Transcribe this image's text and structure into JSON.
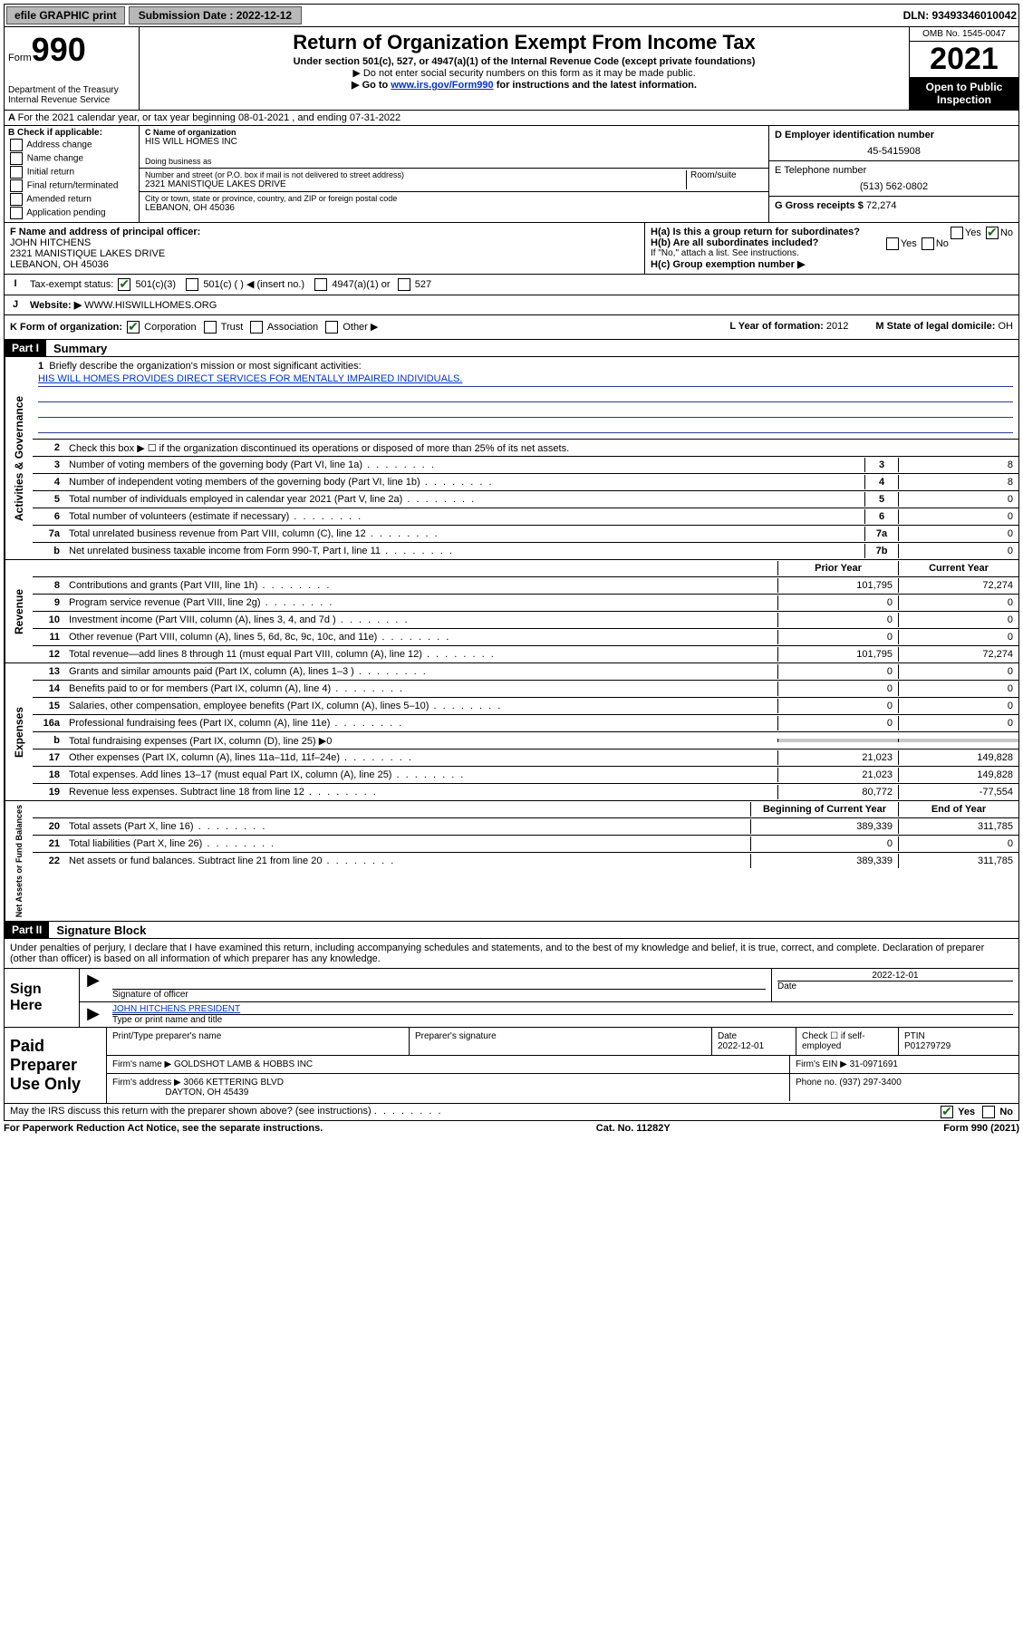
{
  "meta": {
    "efile_label": "efile GRAPHIC print",
    "submission_label": "Submission Date : 2022-12-12",
    "dln": "DLN: 93493346010042"
  },
  "header": {
    "form_label": "Form",
    "form_number": "990",
    "title": "Return of Organization Exempt From Income Tax",
    "subtitle": "Under section 501(c), 527, or 4947(a)(1) of the Internal Revenue Code (except private foundations)",
    "note1": "▶ Do not enter social security numbers on this form as it may be made public.",
    "note2_prefix": "▶ Go to ",
    "note2_link": "www.irs.gov/Form990",
    "note2_suffix": " for instructions and the latest information.",
    "dept": "Department of the Treasury",
    "irs": "Internal Revenue Service",
    "omb": "OMB No. 1545-0047",
    "year": "2021",
    "inspection": "Open to Public Inspection"
  },
  "line_a": "For the 2021 calendar year, or tax year beginning 08-01-2021   , and ending 07-31-2022",
  "section_b": {
    "label": "B Check if applicable:",
    "opts": [
      "Address change",
      "Name change",
      "Initial return",
      "Final return/terminated",
      "Amended return",
      "Application pending"
    ],
    "name_label": "C Name of organization",
    "name": "HIS WILL HOMES INC",
    "dba_label": "Doing business as",
    "dba": "",
    "addr_label": "Number and street (or P.O. box if mail is not delivered to street address)",
    "addr": "2321 MANISTIQUE LAKES DRIVE",
    "suite_label": "Room/suite",
    "city_label": "City or town, state or province, country, and ZIP or foreign postal code",
    "city": "LEBANON, OH  45036",
    "ein_label": "D Employer identification number",
    "ein": "45-5415908",
    "phone_label": "E Telephone number",
    "phone": "(513) 562-0802",
    "gross_label": "G Gross receipts $",
    "gross": "72,274"
  },
  "section_fh": {
    "f_label": "F  Name and address of principal officer:",
    "f_name": "JOHN HITCHENS",
    "f_addr": "2321 MANISTIQUE LAKES DRIVE",
    "f_city": "LEBANON, OH  45036",
    "ha": "H(a)  Is this a group return for subordinates?",
    "hb": "H(b)  Are all subordinates included?",
    "hb_note": "If \"No,\" attach a list. See instructions.",
    "hc": "H(c)  Group exemption number ▶"
  },
  "row_i": {
    "label": "Tax-exempt status:",
    "opts": [
      "501(c)(3)",
      "501(c) (  ) ◀ (insert no.)",
      "4947(a)(1) or",
      "527"
    ]
  },
  "row_j": {
    "label": "Website: ▶",
    "value": "WWW.HISWILLHOMES.ORG"
  },
  "row_k": {
    "label": "K Form of organization:",
    "opts": [
      "Corporation",
      "Trust",
      "Association",
      "Other ▶"
    ],
    "l_label": "L Year of formation:",
    "l_value": "2012",
    "m_label": "M State of legal domicile:",
    "m_value": "OH"
  },
  "part1": {
    "header": "Part I",
    "title": "Summary"
  },
  "governance": {
    "label": "Activities & Governance",
    "q1_label": "Briefly describe the organization's mission or most significant activities:",
    "q1_text": "HIS WILL HOMES PROVIDES DIRECT SERVICES FOR MENTALLY IMPAIRED INDIVIDUALS.",
    "q2": "Check this box ▶ ☐  if the organization discontinued its operations or disposed of more than 25% of its net assets.",
    "rows": [
      {
        "n": "3",
        "d": "Number of voting members of the governing body (Part VI, line 1a)",
        "box": "3",
        "v": "8"
      },
      {
        "n": "4",
        "d": "Number of independent voting members of the governing body (Part VI, line 1b)",
        "box": "4",
        "v": "8"
      },
      {
        "n": "5",
        "d": "Total number of individuals employed in calendar year 2021 (Part V, line 2a)",
        "box": "5",
        "v": "0"
      },
      {
        "n": "6",
        "d": "Total number of volunteers (estimate if necessary)",
        "box": "6",
        "v": "0"
      },
      {
        "n": "7a",
        "d": "Total unrelated business revenue from Part VIII, column (C), line 12",
        "box": "7a",
        "v": "0"
      },
      {
        "n": "b",
        "d": "Net unrelated business taxable income from Form 990-T, Part I, line 11",
        "box": "7b",
        "v": "0"
      }
    ]
  },
  "revenue": {
    "label": "Revenue",
    "header_prior": "Prior Year",
    "header_current": "Current Year",
    "rows": [
      {
        "n": "8",
        "d": "Contributions and grants (Part VIII, line 1h)",
        "p": "101,795",
        "c": "72,274"
      },
      {
        "n": "9",
        "d": "Program service revenue (Part VIII, line 2g)",
        "p": "0",
        "c": "0"
      },
      {
        "n": "10",
        "d": "Investment income (Part VIII, column (A), lines 3, 4, and 7d )",
        "p": "0",
        "c": "0"
      },
      {
        "n": "11",
        "d": "Other revenue (Part VIII, column (A), lines 5, 6d, 8c, 9c, 10c, and 11e)",
        "p": "0",
        "c": "0"
      },
      {
        "n": "12",
        "d": "Total revenue—add lines 8 through 11 (must equal Part VIII, column (A), line 12)",
        "p": "101,795",
        "c": "72,274"
      }
    ]
  },
  "expenses": {
    "label": "Expenses",
    "rows": [
      {
        "n": "13",
        "d": "Grants and similar amounts paid (Part IX, column (A), lines 1–3 )",
        "p": "0",
        "c": "0"
      },
      {
        "n": "14",
        "d": "Benefits paid to or for members (Part IX, column (A), line 4)",
        "p": "0",
        "c": "0"
      },
      {
        "n": "15",
        "d": "Salaries, other compensation, employee benefits (Part IX, column (A), lines 5–10)",
        "p": "0",
        "c": "0"
      },
      {
        "n": "16a",
        "d": "Professional fundraising fees (Part IX, column (A), line 11e)",
        "p": "0",
        "c": "0"
      },
      {
        "n": "b",
        "d": "Total fundraising expenses (Part IX, column (D), line 25) ▶0",
        "grey": true
      },
      {
        "n": "17",
        "d": "Other expenses (Part IX, column (A), lines 11a–11d, 11f–24e)",
        "p": "21,023",
        "c": "149,828"
      },
      {
        "n": "18",
        "d": "Total expenses. Add lines 13–17 (must equal Part IX, column (A), line 25)",
        "p": "21,023",
        "c": "149,828"
      },
      {
        "n": "19",
        "d": "Revenue less expenses. Subtract line 18 from line 12",
        "p": "80,772",
        "c": "-77,554"
      }
    ]
  },
  "netassets": {
    "label": "Net Assets or Fund Balances",
    "header_prior": "Beginning of Current Year",
    "header_current": "End of Year",
    "rows": [
      {
        "n": "20",
        "d": "Total assets (Part X, line 16)",
        "p": "389,339",
        "c": "311,785"
      },
      {
        "n": "21",
        "d": "Total liabilities (Part X, line 26)",
        "p": "0",
        "c": "0"
      },
      {
        "n": "22",
        "d": "Net assets or fund balances. Subtract line 21 from line 20",
        "p": "389,339",
        "c": "311,785"
      }
    ]
  },
  "part2": {
    "header": "Part II",
    "title": "Signature Block",
    "penalties": "Under penalties of perjury, I declare that I have examined this return, including accompanying schedules and statements, and to the best of my knowledge and belief, it is true, correct, and complete. Declaration of preparer (other than officer) is based on all information of which preparer has any knowledge."
  },
  "sign": {
    "label": "Sign Here",
    "sig_label": "Signature of officer",
    "date_label": "Date",
    "date": "2022-12-01",
    "name": "JOHN HITCHENS PRESIDENT",
    "name_label": "Type or print name and title"
  },
  "paid": {
    "label": "Paid Preparer Use Only",
    "h1": "Print/Type preparer's name",
    "h2": "Preparer's signature",
    "h3": "Date",
    "h3v": "2022-12-01",
    "h4": "Check ☐ if self-employed",
    "h5": "PTIN",
    "h5v": "P01279729",
    "firm_name_label": "Firm's name    ▶",
    "firm_name": "GOLDSHOT LAMB & HOBBS INC",
    "firm_ein_label": "Firm's EIN ▶",
    "firm_ein": "31-0971691",
    "firm_addr_label": "Firm's address ▶",
    "firm_addr": "3066 KETTERING BLVD",
    "firm_city": "DAYTON, OH  45439",
    "phone_label": "Phone no.",
    "phone": "(937) 297-3400"
  },
  "footer": {
    "discuss": "May the IRS discuss this return with the preparer shown above? (see instructions)",
    "yes": "Yes",
    "no": "No",
    "paperwork": "For Paperwork Reduction Act Notice, see the separate instructions.",
    "cat": "Cat. No. 11282Y",
    "formrev": "Form 990 (2021)"
  }
}
